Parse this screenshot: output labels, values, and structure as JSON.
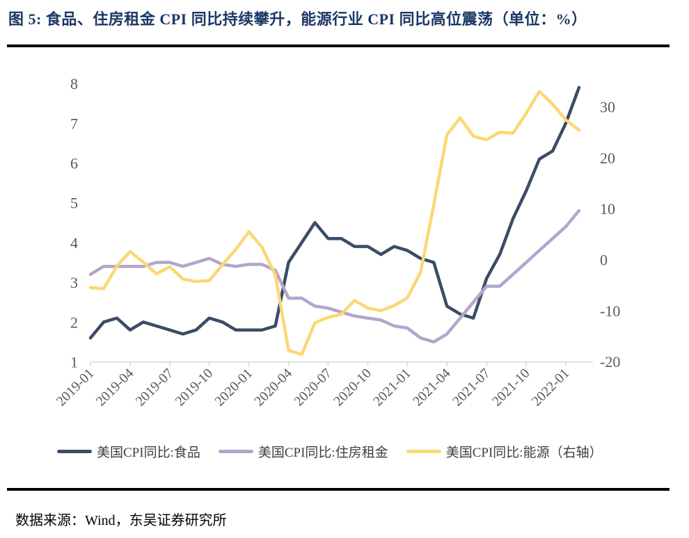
{
  "page": {
    "title": "图 5:  食品、住房租金 CPI 同比持续攀升，能源行业 CPI 同比高位震荡（单位：%）",
    "source": "数据来源：Wind，东吴证券研究所"
  },
  "chart_data": {
    "type": "line",
    "x": [
      "2019-01",
      "2019-02",
      "2019-03",
      "2019-04",
      "2019-05",
      "2019-06",
      "2019-07",
      "2019-08",
      "2019-09",
      "2019-10",
      "2019-11",
      "2019-12",
      "2020-01",
      "2020-02",
      "2020-03",
      "2020-04",
      "2020-05",
      "2020-06",
      "2020-07",
      "2020-08",
      "2020-09",
      "2020-10",
      "2020-11",
      "2020-12",
      "2021-01",
      "2021-02",
      "2021-03",
      "2021-04",
      "2021-05",
      "2021-06",
      "2021-07",
      "2021-08",
      "2021-09",
      "2021-10",
      "2021-11",
      "2021-12",
      "2022-01",
      "2022-02"
    ],
    "x_tick_labels": [
      "2019-01",
      "2019-04",
      "2019-07",
      "2019-10",
      "2020-01",
      "2020-04",
      "2020-07",
      "2020-10",
      "2021-01",
      "2021-04",
      "2021-07",
      "2021-10",
      "2022-01"
    ],
    "left_axis": {
      "ticks": [
        8,
        7,
        6,
        5,
        4,
        3,
        2,
        1
      ],
      "range": [
        1,
        8
      ]
    },
    "right_axis": {
      "ticks": [
        30,
        20,
        10,
        0,
        -10,
        -20
      ],
      "range": [
        -20,
        33
      ]
    },
    "grid": false,
    "legend_position": "bottom",
    "series": [
      {
        "id": "food",
        "name": "美国CPI同比:食品",
        "axis": "left",
        "color": "#3C4C66",
        "values": [
          1.6,
          2.0,
          2.1,
          1.8,
          2.0,
          1.9,
          1.8,
          1.7,
          1.8,
          2.1,
          2.0,
          1.8,
          1.8,
          1.8,
          1.9,
          3.5,
          4.0,
          4.5,
          4.1,
          4.1,
          3.9,
          3.9,
          3.7,
          3.9,
          3.8,
          3.6,
          3.5,
          2.4,
          2.2,
          2.1,
          3.1,
          3.7,
          4.6,
          5.3,
          6.1,
          6.3,
          7.0,
          7.9
        ]
      },
      {
        "id": "rent",
        "name": "美国CPI同比:住房租金",
        "axis": "left",
        "color": "#B3A5CD",
        "values": [
          3.2,
          3.4,
          3.4,
          3.4,
          3.4,
          3.5,
          3.5,
          3.4,
          3.5,
          3.6,
          3.45,
          3.4,
          3.45,
          3.45,
          3.3,
          2.6,
          2.6,
          2.4,
          2.35,
          2.25,
          2.15,
          2.1,
          2.05,
          1.9,
          1.85,
          1.6,
          1.5,
          1.7,
          2.1,
          2.5,
          2.9,
          2.9,
          3.2,
          3.5,
          3.8,
          4.1,
          4.4,
          4.8
        ]
      },
      {
        "id": "energy",
        "name": "美国CPI同比:能源（右轴）",
        "axis": "right",
        "color": "#FBD875",
        "values": [
          -5.5,
          -5.7,
          -1.3,
          1.6,
          -0.5,
          -2.8,
          -1.4,
          -3.8,
          -4.3,
          -4.1,
          -1.0,
          2.0,
          5.5,
          2.4,
          -3.0,
          -17.8,
          -18.6,
          -12.4,
          -11.3,
          -10.7,
          -8.0,
          -9.5,
          -10.0,
          -9.0,
          -7.5,
          -2.5,
          10.8,
          24.5,
          27.8,
          24.2,
          23.5,
          25.0,
          24.8,
          28.7,
          33.0,
          30.5,
          27.4,
          25.4
        ]
      }
    ],
    "style": {
      "title_color": "#1B3864",
      "axis_text_color": "#595959",
      "axis_line_color": "#D9D9D9"
    }
  }
}
